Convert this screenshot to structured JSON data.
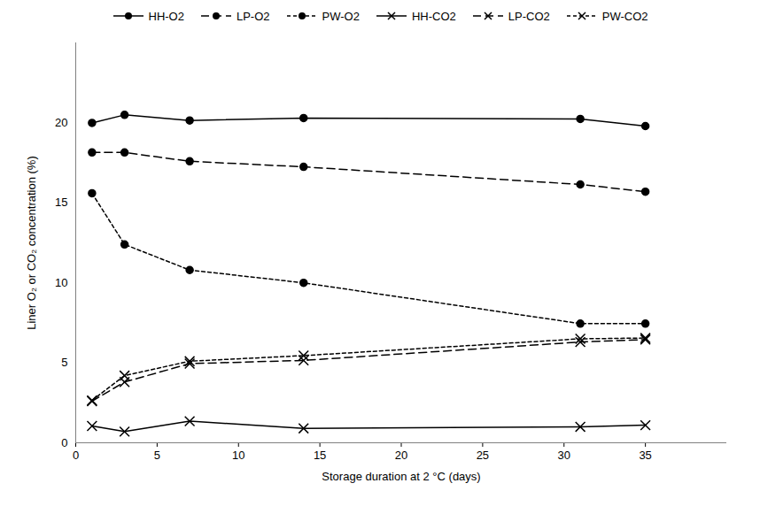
{
  "chart_data": {
    "type": "line",
    "x": [
      1,
      3,
      7,
      14,
      31,
      35
    ],
    "xlabel": "Storage duration at 2 °C (days)",
    "ylabel": "Liner O₂ or CO₂ concentration (%)",
    "xlim": [
      0,
      40
    ],
    "xticks": [
      0,
      5,
      10,
      15,
      20,
      25,
      30,
      35
    ],
    "ylim": [
      0,
      25
    ],
    "yticks": [
      0,
      5,
      10,
      15,
      20
    ],
    "grid": false,
    "legend": "top",
    "series": [
      {
        "name": "HH-O2",
        "color": "#000000",
        "marker": "circle",
        "line_style": "solid",
        "values": [
          20.0,
          20.5,
          20.15,
          20.3,
          20.25,
          19.8
        ]
      },
      {
        "name": "LP-O2",
        "color": "#000000",
        "marker": "circle",
        "line_style": "dashed",
        "values": [
          18.15,
          18.15,
          17.6,
          17.25,
          16.15,
          15.7
        ]
      },
      {
        "name": "PW-O2",
        "color": "#000000",
        "marker": "circle",
        "line_style": "short_dashed",
        "values": [
          15.6,
          12.4,
          10.8,
          10.0,
          7.45,
          7.45
        ]
      },
      {
        "name": "HH-CO2",
        "color": "#000000",
        "marker": "x",
        "line_style": "solid",
        "values": [
          1.05,
          0.7,
          1.35,
          0.9,
          1.0,
          1.1
        ]
      },
      {
        "name": "LP-CO2",
        "color": "#000000",
        "marker": "x",
        "line_style": "dashed",
        "values": [
          2.6,
          3.8,
          4.95,
          5.15,
          6.3,
          6.45
        ]
      },
      {
        "name": "PW-CO2",
        "color": "#000000",
        "marker": "x",
        "line_style": "short_dashed",
        "values": [
          2.65,
          4.2,
          5.1,
          5.45,
          6.5,
          6.55
        ]
      }
    ]
  }
}
